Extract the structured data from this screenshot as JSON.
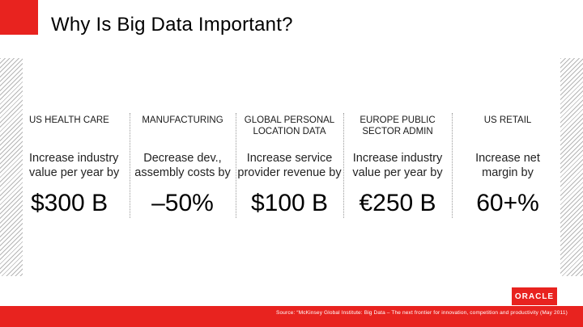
{
  "slide": {
    "title": "Why Is Big Data Important?"
  },
  "columns": [
    {
      "sector": "US HEALTH CARE",
      "description": "Increase industry\nvalue per year by",
      "value": "$300 B"
    },
    {
      "sector": "MANUFACTURING",
      "description": "Decrease dev.,\nassembly costs by",
      "value": "–50%"
    },
    {
      "sector": "GLOBAL PERSONAL\nLOCATION DATA",
      "description": "Increase service\nprovider revenue by",
      "value": "$100 B"
    },
    {
      "sector": "EUROPE PUBLIC\nSECTOR ADMIN",
      "description": "Increase industry\nvalue per year by",
      "value": "€250 B"
    },
    {
      "sector": "US RETAIL",
      "description": "Increase net\nmargin by",
      "value": "60+%"
    }
  ],
  "footer": {
    "logo": "ORACLE",
    "source": "Source: “McKinsey Global Institute: Big Data – The next frontier for innovation, competition and productivity (May 2011)"
  },
  "colors": {
    "accent": "#e8231f",
    "hatch": "#b5b5b5",
    "text": "#1a1a1a"
  },
  "icons": [
    "oracle-logo"
  ]
}
